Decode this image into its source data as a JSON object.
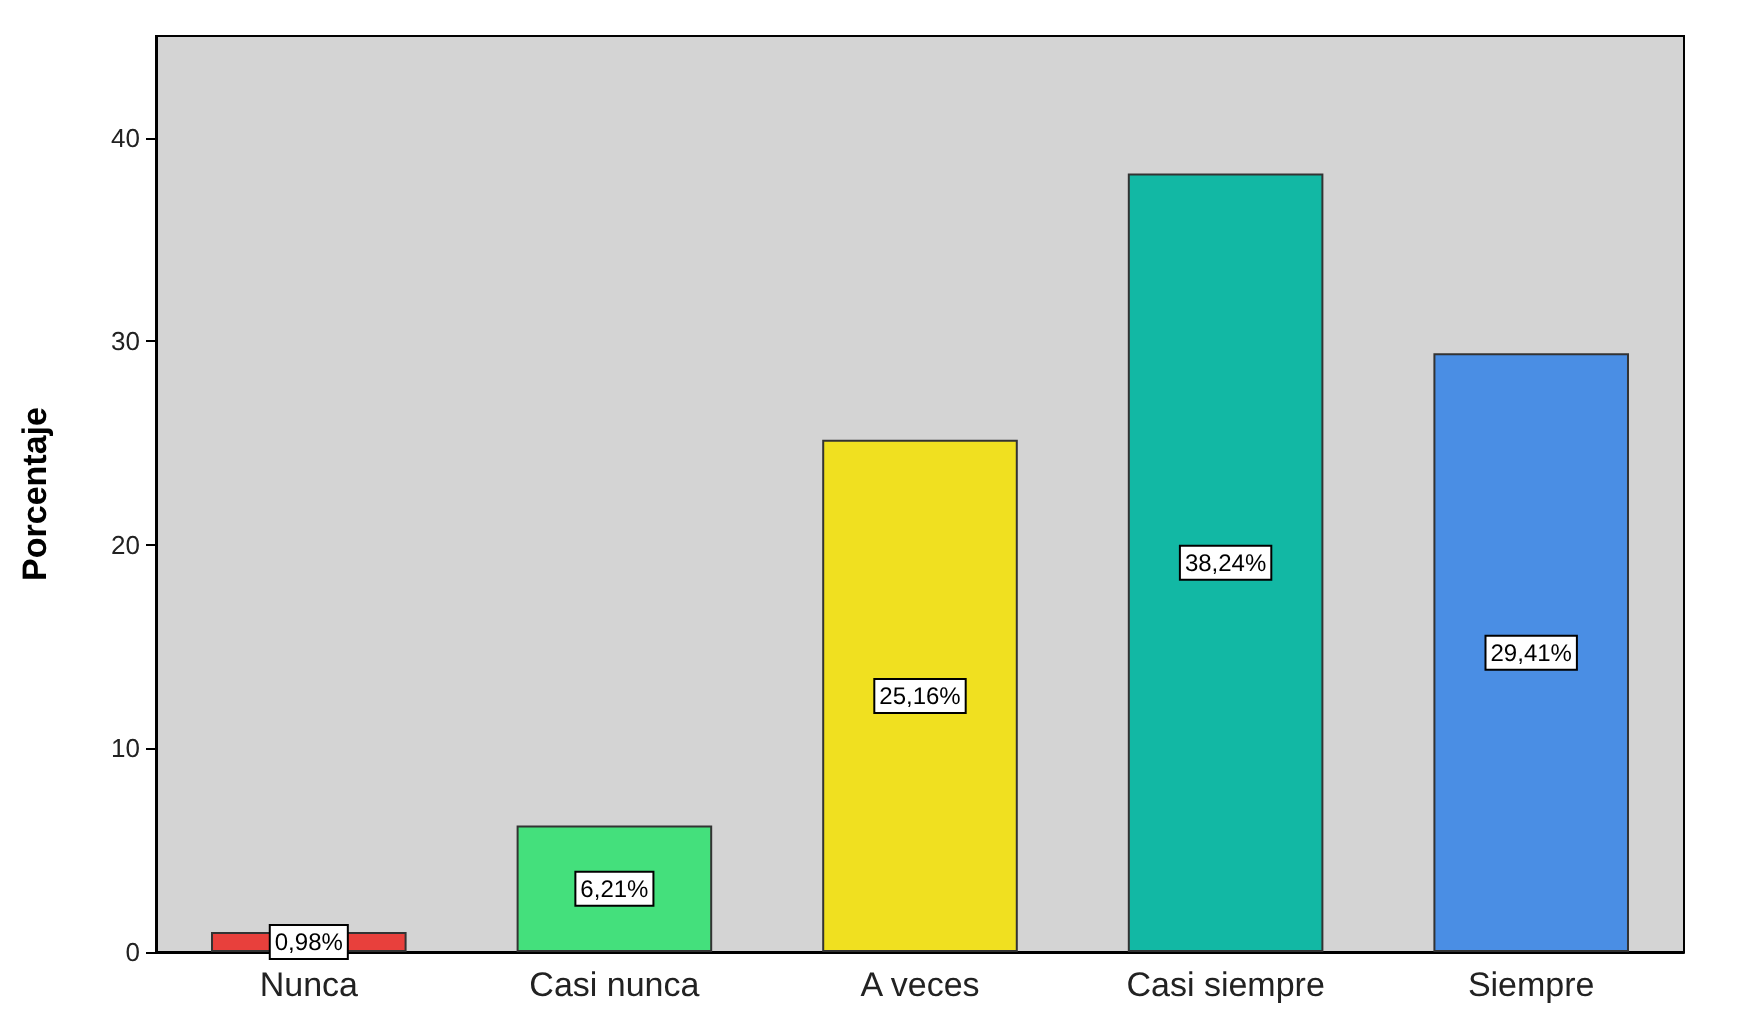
{
  "chart_data": {
    "type": "bar",
    "ylabel": "Porcentaje",
    "categories": [
      "Nunca",
      "Casi nunca",
      "A veces",
      "Casi siempre",
      "Siempre"
    ],
    "values": [
      0.98,
      6.21,
      25.16,
      38.24,
      29.41
    ],
    "colors": [
      "#e8403c",
      "#44e07c",
      "#f0e020",
      "#12b8a4",
      "#4a8ee4"
    ],
    "value_labels": [
      "0,98%",
      "6,21%",
      "25,16%",
      "38,24%",
      "29,41%"
    ],
    "ylim": [
      0,
      45
    ],
    "yticks": [
      0,
      10,
      20,
      30,
      40
    ],
    "grid": false
  }
}
